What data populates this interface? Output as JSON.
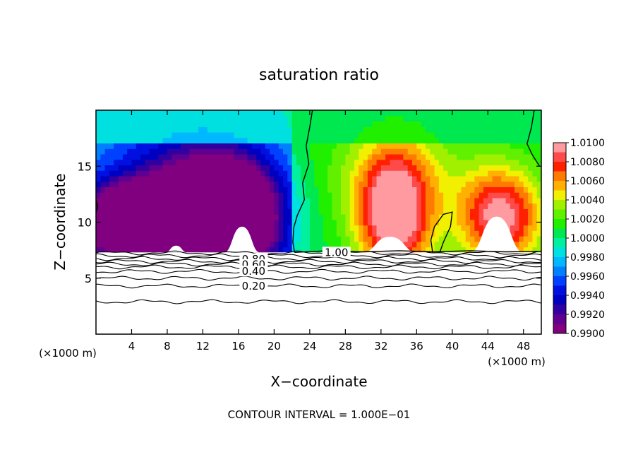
{
  "chart_data": {
    "type": "heatmap",
    "title": "saturation ratio",
    "xlabel": "X−coordinate",
    "ylabel": "Z−coordinate",
    "x_unit_left": "(×1000 m)",
    "x_unit_right": "(×1000 m)",
    "xlim": [
      0,
      50
    ],
    "ylim": [
      0,
      20
    ],
    "xticks": [
      4,
      8,
      12,
      16,
      20,
      24,
      28,
      32,
      36,
      40,
      44,
      48
    ],
    "yticks": [
      5,
      10,
      15
    ],
    "footer": "CONTOUR INTERVAL = 1.000E−01",
    "colorbar": {
      "labels": [
        "1.0100",
        "1.0080",
        "1.0060",
        "1.0040",
        "1.0020",
        "1.0000",
        "0.9980",
        "0.9960",
        "0.9940",
        "0.9920",
        "0.9900"
      ],
      "colors": [
        "#ff9aa0",
        "#ff4a4a",
        "#ff2000",
        "#ff7a00",
        "#ffb000",
        "#f0f000",
        "#a0f000",
        "#60f000",
        "#20f000",
        "#00e850",
        "#00f0a0",
        "#00e0e0",
        "#00b8ff",
        "#0080ff",
        "#0040ff",
        "#0010e0",
        "#0000c0",
        "#3000a0",
        "#600090",
        "#800080"
      ]
    },
    "contour_labels": [
      {
        "text": "1.00",
        "x": 27.0,
        "y": 7.3
      },
      {
        "text": "0.80",
        "x": 17.7,
        "y": 6.7
      },
      {
        "text": "0.60",
        "x": 17.7,
        "y": 6.2
      },
      {
        "text": "0.40",
        "x": 17.7,
        "y": 5.6
      },
      {
        "text": "0.20",
        "x": 17.7,
        "y": 4.3
      }
    ],
    "contour_levels_z": [
      7.25,
      7.0,
      6.75,
      6.5,
      6.25,
      6.0,
      5.6,
      5.0,
      4.3,
      2.9
    ],
    "surface_z": 7.3,
    "fields": [
      {
        "kind": "dry",
        "x": 7,
        "z": 9.5,
        "sx": 5,
        "sz": 2.5,
        "amp": -0.0115
      },
      {
        "kind": "dry",
        "x": 15,
        "z": 10.5,
        "sx": 4,
        "sz": 3.5,
        "amp": -0.0125
      },
      {
        "kind": "dry",
        "x": 10,
        "z": 12.5,
        "sx": 6,
        "sz": 5,
        "amp": -0.005
      },
      {
        "kind": "dry",
        "x": 3,
        "z": 10.5,
        "sx": 3,
        "sz": 2,
        "amp": -0.006
      },
      {
        "kind": "moist",
        "x": 33.5,
        "z": 10.5,
        "sx": 2.8,
        "sz": 4,
        "amp": 0.0095
      },
      {
        "kind": "moist",
        "x": 45.5,
        "z": 10.5,
        "sx": 3.2,
        "sz": 3,
        "amp": 0.009
      },
      {
        "kind": "moist",
        "x": 34,
        "z": 14,
        "sx": 6,
        "sz": 4,
        "amp": 0.003
      }
    ],
    "blank_mounds": [
      {
        "x": 16.4,
        "w": 2.0,
        "h": 2.3
      },
      {
        "x": 33.0,
        "w": 3.0,
        "h": 1.4
      },
      {
        "x": 45.0,
        "w": 3.0,
        "h": 3.2
      },
      {
        "x": 9.0,
        "w": 1.2,
        "h": 0.6
      }
    ]
  }
}
